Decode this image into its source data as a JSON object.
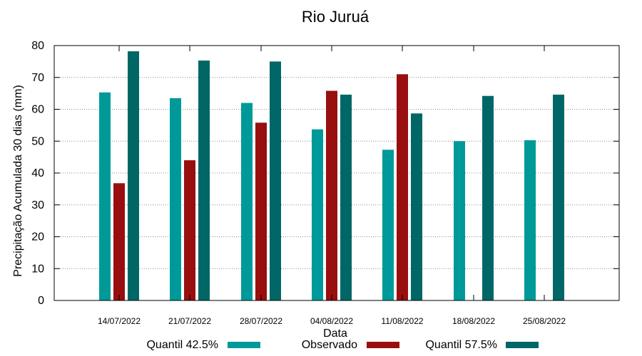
{
  "chart_data": {
    "type": "bar",
    "title": "Rio Juruá",
    "xlabel": "Data",
    "ylabel": "Precipitação Acumulada 30 dias (mm)",
    "ylim": [
      0,
      80
    ],
    "yticks": [
      0,
      10,
      20,
      30,
      40,
      50,
      60,
      70,
      80
    ],
    "grid": true,
    "legend_position": "bottom",
    "categories": [
      "14/07/2022",
      "21/07/2022",
      "28/07/2022",
      "04/08/2022",
      "11/08/2022",
      "18/08/2022",
      "25/08/2022"
    ],
    "series": [
      {
        "name": "Quantil 42.5%",
        "color": "#009999",
        "values": [
          65.3,
          63.5,
          62.0,
          53.7,
          47.3,
          50.0,
          50.3
        ]
      },
      {
        "name": "Observado",
        "color": "#990f0f",
        "values": [
          36.8,
          44.0,
          55.8,
          65.8,
          71.0,
          null,
          null
        ]
      },
      {
        "name": "Quantil 57.5%",
        "color": "#006666",
        "values": [
          78.2,
          75.3,
          75.0,
          64.6,
          58.7,
          64.2,
          64.6
        ]
      }
    ]
  }
}
